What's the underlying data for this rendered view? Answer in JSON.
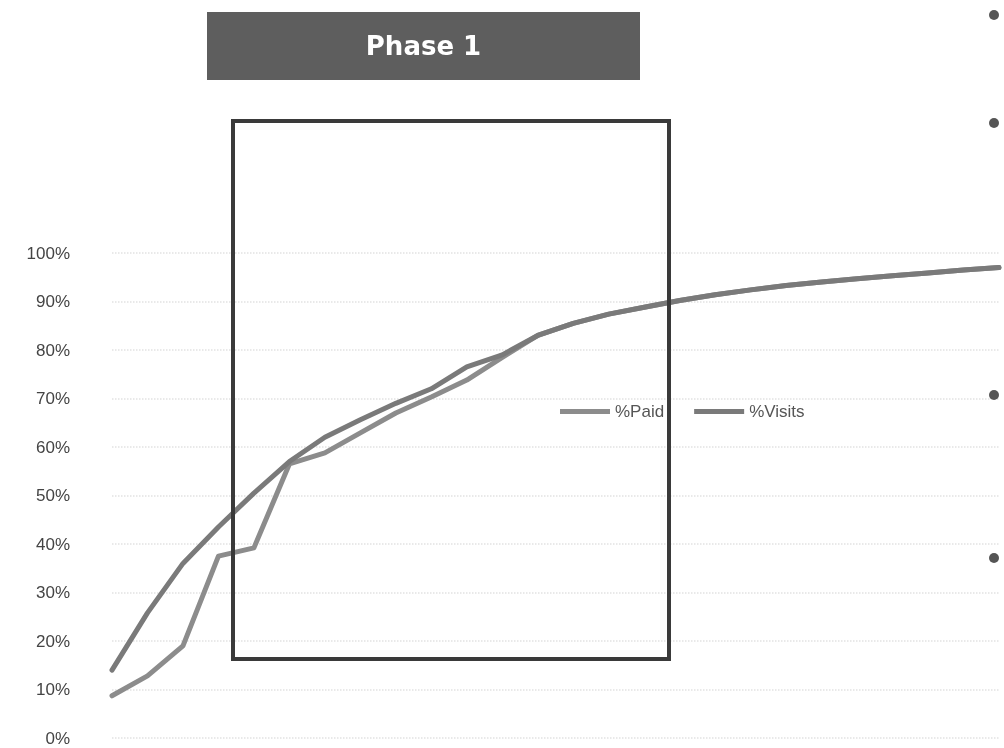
{
  "chart_data": {
    "type": "line",
    "title": "Phase 1",
    "categories": [
      null,
      null,
      null,
      null,
      null,
      null,
      null,
      null,
      null,
      null,
      null,
      null,
      null,
      null,
      null,
      null,
      null,
      null,
      null,
      null,
      null,
      null,
      null,
      null,
      null,
      null
    ],
    "series": [
      {
        "name": "%Paid",
        "color": "#8c8c8c",
        "values": [
          8.7,
          12.8,
          19,
          37.5,
          39.2,
          56.5,
          58.8,
          62.9,
          67,
          70.3,
          73.8,
          78.5,
          83,
          85.5,
          87.4,
          88.8,
          90.2,
          91.4,
          92.4,
          93.3,
          94,
          94.7,
          95.3,
          95.9,
          96.5,
          97
        ]
      },
      {
        "name": "%Visits",
        "color": "#7a7a7a",
        "values": [
          14,
          25.8,
          36,
          43.5,
          50.5,
          57,
          62,
          65.6,
          69,
          72,
          76.5,
          79,
          83,
          85.5,
          87.4,
          88.8,
          90.2,
          91.4,
          92.4,
          93.3,
          94,
          94.7,
          95.3,
          95.9,
          96.5,
          97
        ]
      }
    ],
    "ylim": [
      0,
      100
    ],
    "yticks": [
      {
        "value": 0,
        "label": "0%"
      },
      {
        "value": 10,
        "label": "10%"
      },
      {
        "value": 20,
        "label": "20%"
      },
      {
        "value": 30,
        "label": "30%"
      },
      {
        "value": 40,
        "label": "40%"
      },
      {
        "value": 50,
        "label": "50%"
      },
      {
        "value": 60,
        "label": "60%"
      },
      {
        "value": 70,
        "label": "70%"
      },
      {
        "value": 80,
        "label": "80%"
      },
      {
        "value": 90,
        "label": "90%"
      },
      {
        "value": 100,
        "label": "100%"
      }
    ],
    "tick_labels": "y",
    "grid": "y",
    "legend": "center",
    "marker": "none",
    "line_style": "solid"
  }
}
